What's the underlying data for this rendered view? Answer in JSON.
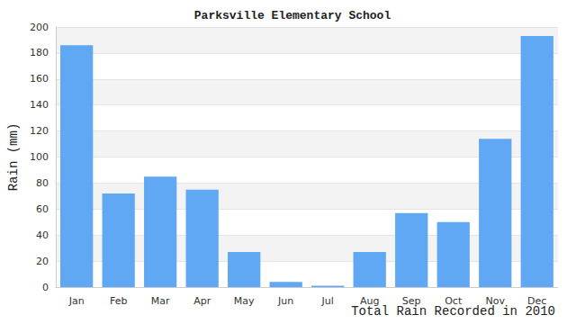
{
  "chart_data": {
    "type": "bar",
    "title": "Parksville Elementary School",
    "x_label": "Total Rain Recorded in 2010",
    "y_label": "Rain (mm)",
    "categories": [
      "Jan",
      "Feb",
      "Mar",
      "Apr",
      "May",
      "Jun",
      "Jul",
      "Aug",
      "Sep",
      "Oct",
      "Nov",
      "Dec"
    ],
    "values": [
      186,
      72,
      85,
      75,
      27,
      4,
      1,
      27,
      57,
      50,
      114,
      193
    ],
    "color": "#60a8f4",
    "ylim": [
      0,
      200
    ],
    "yticks": [
      0,
      20,
      40,
      60,
      80,
      100,
      120,
      140,
      160,
      180,
      200
    ],
    "grid": true
  }
}
